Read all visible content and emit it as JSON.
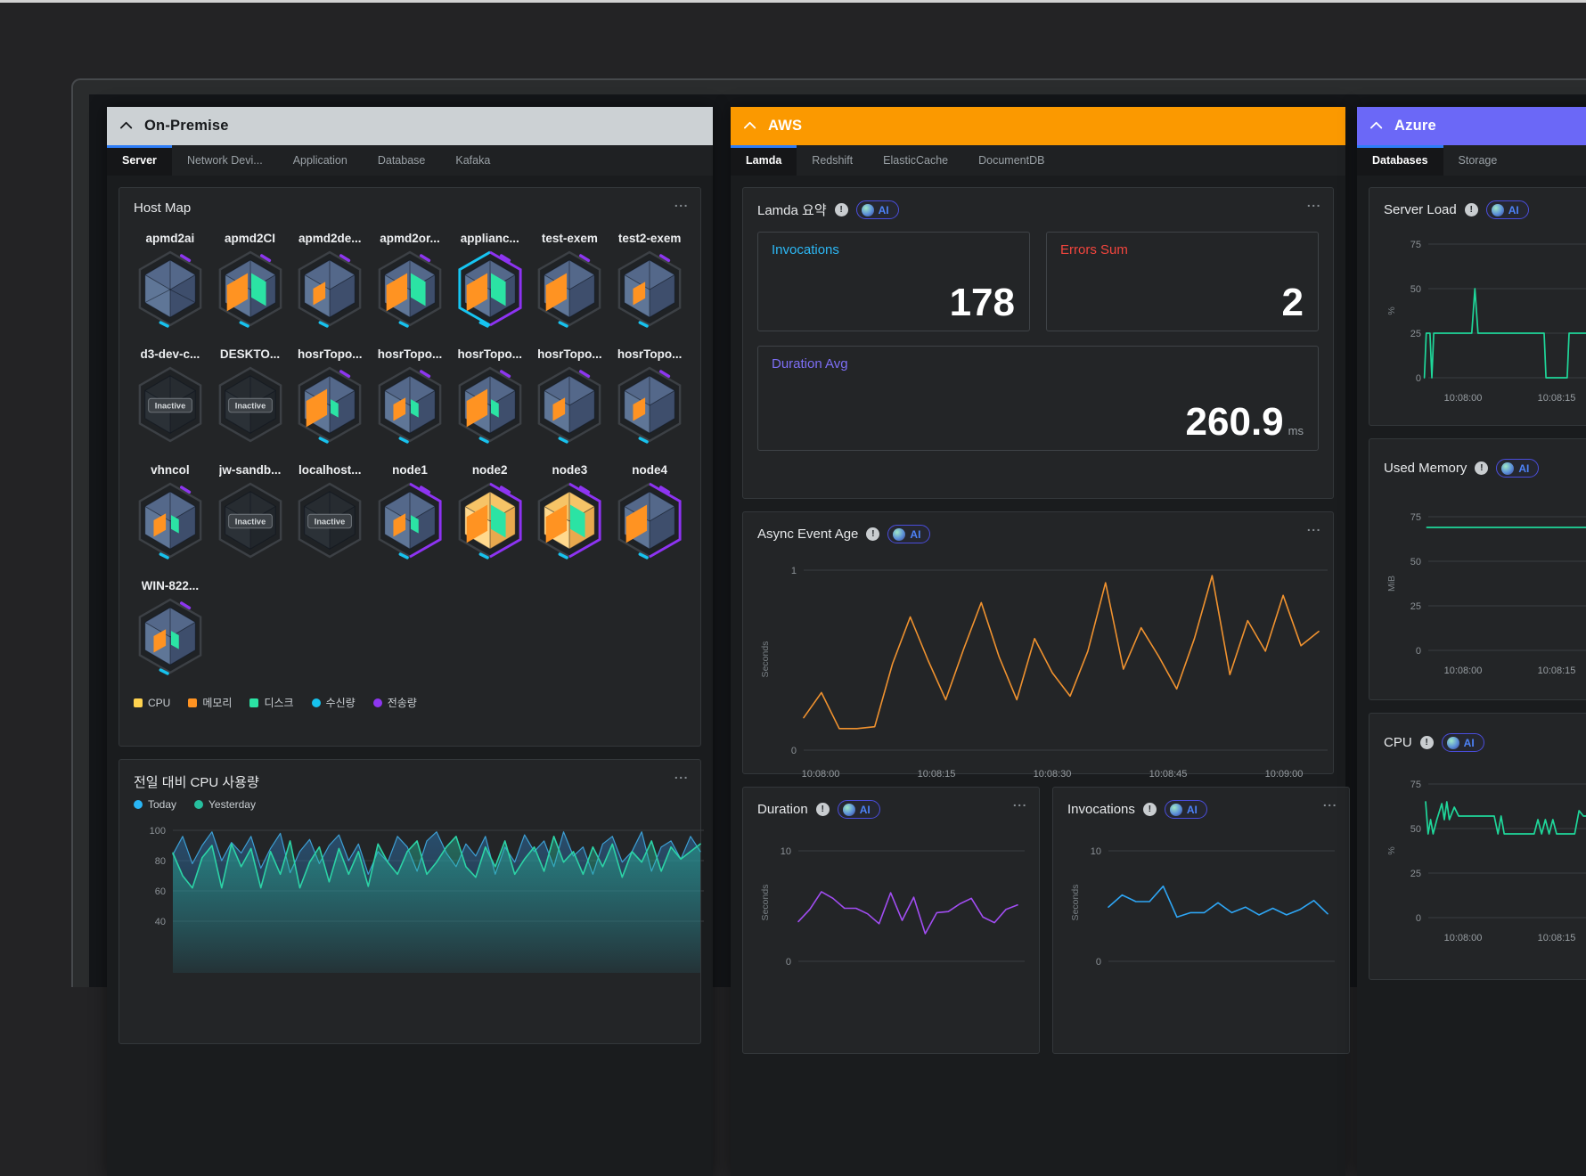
{
  "icons": {
    "menu_dots": "...",
    "info_glyph": "!"
  },
  "ai_badge": {
    "label": "AI"
  },
  "inactive_label": "Inactive",
  "panels": {
    "onprem": {
      "title": "On-Premise",
      "tabs": [
        "Server",
        "Network Devi...",
        "Application",
        "Database",
        "Kafaka"
      ],
      "active_tab_index": 0,
      "hostmap": {
        "title": "Host Map",
        "hosts": [
          {
            "name": "apmd2ai",
            "orange": 0,
            "green": 0,
            "spokes": true
          },
          {
            "name": "apmd2CI",
            "orange": 2,
            "green": 2
          },
          {
            "name": "apmd2de...",
            "orange": 1,
            "green": 0
          },
          {
            "name": "apmd2or...",
            "orange": 2,
            "green": 2
          },
          {
            "name": "applianc...",
            "orange": 2,
            "green": 2,
            "outline": "select"
          },
          {
            "name": "test-exem",
            "orange": 2,
            "green": 0
          },
          {
            "name": "test2-exem",
            "orange": 1,
            "green": 0
          },
          {
            "name": "d3-dev-c...",
            "inactive": true
          },
          {
            "name": "DESKTO...",
            "inactive": true
          },
          {
            "name": "hosrTopo...",
            "orange": 2,
            "green": 1
          },
          {
            "name": "hosrTopo...",
            "orange": 1,
            "green": 1
          },
          {
            "name": "hosrTopo...",
            "orange": 2,
            "green": 1
          },
          {
            "name": "hosrTopo...",
            "orange": 1,
            "green": 0
          },
          {
            "name": "hosrTopo...",
            "orange": 1,
            "green": 0
          },
          {
            "name": "vhncol",
            "orange": 1,
            "green": 1
          },
          {
            "name": "jw-sandb...",
            "inactive": true
          },
          {
            "name": "localhost...",
            "inactive": true
          },
          {
            "name": "node1",
            "orange": 1,
            "green": 1,
            "outline": "purple"
          },
          {
            "name": "node2",
            "body": "yellow",
            "orange": 2,
            "green": 2,
            "outline": "purple"
          },
          {
            "name": "node3",
            "body": "yellow",
            "orange": 2,
            "green": 2,
            "outline": "purple"
          },
          {
            "name": "node4",
            "orange": 2,
            "green": 0,
            "outline": "purple"
          },
          {
            "name": "WIN-822...",
            "orange": 1,
            "green": 1
          }
        ],
        "legend": [
          {
            "label": "CPU",
            "color": "#ffd34f",
            "shape": "square"
          },
          {
            "label": "메모리",
            "color": "#ff9322",
            "shape": "square"
          },
          {
            "label": "디스크",
            "color": "#2be3a4",
            "shape": "square"
          },
          {
            "label": "수신량",
            "color": "#17c2ee",
            "shape": "circle"
          },
          {
            "label": "전송량",
            "color": "#8d36f0",
            "shape": "circle"
          }
        ]
      },
      "cpu_card": {
        "title": "전일 대비 CPU 사용량",
        "legend": [
          {
            "label": "Today",
            "color": "#29b6f6",
            "shape": "circle"
          },
          {
            "label": "Yesterday",
            "color": "#26bf9e",
            "shape": "circle"
          }
        ]
      }
    },
    "aws": {
      "title": "AWS",
      "tabs": [
        "Lamda",
        "Redshift",
        "ElasticCache",
        "DocumentDB"
      ],
      "active_tab_index": 0,
      "summary": {
        "title": "Lamda 요약",
        "stats": [
          {
            "label": "Invocations",
            "value": "178",
            "color": "#2cb8f5"
          },
          {
            "label": "Errors Sum",
            "value": "2",
            "color": "#f2453d"
          },
          {
            "label": "Duration Avg",
            "value": "260.9",
            "unit": "ms",
            "color": "#7d6ef5"
          }
        ]
      },
      "async_card": {
        "title": "Async Event Age"
      },
      "duration_card": {
        "title": "Duration"
      },
      "invocations_card": {
        "title": "Invocations"
      }
    },
    "azure": {
      "title": "Azure",
      "tabs": [
        "Databases",
        "Storage"
      ],
      "active_tab_index": 0,
      "cards": [
        {
          "title": "Server Load"
        },
        {
          "title": "Used Memory"
        },
        {
          "title": "CPU"
        }
      ]
    }
  },
  "chart_data": [
    {
      "id": "onprem-cpu-compare",
      "type": "area",
      "title": "전일 대비 CPU 사용량",
      "yticks": [
        100,
        80,
        60,
        40
      ],
      "ylim": [
        40,
        105
      ],
      "legend_position": "top-left",
      "series": [
        {
          "name": "Today",
          "color": "#3d9fd4",
          "values": [
            84,
            96,
            78,
            90,
            99,
            80,
            92,
            85,
            96,
            75,
            88,
            98,
            72,
            86,
            94,
            78,
            90,
            97,
            80,
            91,
            71,
            86,
            79,
            96,
            89,
            73,
            93,
            99,
            85,
            76,
            91,
            83,
            96,
            71,
            89,
            79,
            97,
            86,
            93,
            76,
            99,
            83,
            89,
            71,
            91,
            96,
            79,
            86,
            99,
            73,
            89,
            93,
            81,
            96,
            86
          ]
        },
        {
          "name": "Yesterday",
          "color": "#2cd3a6",
          "values": [
            85,
            70,
            62,
            82,
            90,
            62,
            91,
            76,
            88,
            62,
            86,
            71,
            93,
            62,
            79,
            89,
            66,
            88,
            71,
            86,
            63,
            91,
            79,
            71,
            86,
            93,
            71,
            79,
            89,
            96,
            76,
            69,
            89,
            76,
            93,
            71,
            81,
            89,
            73,
            96,
            79,
            86,
            71,
            89,
            76,
            91,
            69,
            86,
            79,
            93,
            73,
            89,
            81,
            86,
            91
          ]
        }
      ]
    },
    {
      "id": "aws-async-event-age",
      "type": "line",
      "title": "Async Event Age",
      "color": "#f0922f",
      "ylabel": "Seconds",
      "yticks": [
        1,
        0
      ],
      "ylim": [
        0,
        1
      ],
      "xticks": [
        "10:08:00",
        "10:08:15",
        "10:08:30",
        "10:08:45",
        "10:09:00"
      ],
      "values": [
        0.18,
        0.32,
        0.12,
        0.12,
        0.13,
        0.48,
        0.74,
        0.5,
        0.28,
        0.56,
        0.82,
        0.52,
        0.28,
        0.62,
        0.43,
        0.3,
        0.55,
        0.93,
        0.45,
        0.68,
        0.52,
        0.34,
        0.62,
        0.97,
        0.42,
        0.72,
        0.55,
        0.86,
        0.58,
        0.66
      ]
    },
    {
      "id": "aws-duration",
      "type": "line",
      "title": "Duration",
      "color": "#a14df2",
      "ylabel": "Seconds",
      "yticks": [
        10,
        0
      ],
      "ylim": [
        0,
        10
      ],
      "values": [
        3.6,
        4.7,
        6.3,
        5.7,
        4.8,
        4.8,
        4.3,
        3.4,
        6.2,
        3.7,
        5.8,
        2.5,
        4.4,
        4.5,
        5.2,
        5.7,
        4.0,
        3.5,
        4.7,
        5.1
      ]
    },
    {
      "id": "aws-invocations",
      "type": "line",
      "title": "Invocations",
      "color": "#2ea6f5",
      "ylabel": "Seconds",
      "yticks": [
        10,
        0
      ],
      "ylim": [
        0,
        10
      ],
      "values": [
        4.9,
        6.0,
        5.4,
        5.4,
        6.8,
        4.0,
        4.4,
        4.4,
        5.3,
        4.4,
        4.9,
        4.2,
        4.8,
        4.2,
        4.7,
        5.5,
        4.3
      ]
    },
    {
      "id": "azure-server-load",
      "type": "line",
      "title": "Server Load",
      "color": "#1fd79a",
      "ylabel": "%",
      "yticks": [
        75,
        50,
        25,
        0
      ],
      "ylim": [
        0,
        80
      ],
      "xticks": [
        "10:08:00",
        "10:08:15"
      ],
      "points": [
        [
          -6.2,
          0
        ],
        [
          -5.9,
          25
        ],
        [
          -5.3,
          25
        ],
        [
          -5.0,
          0
        ],
        [
          -4.7,
          25
        ],
        [
          1.4,
          25
        ],
        [
          1.9,
          50
        ],
        [
          2.4,
          25
        ],
        [
          13.0,
          25
        ],
        [
          13.3,
          0
        ],
        [
          16.7,
          0
        ],
        [
          17.0,
          25
        ],
        [
          40,
          25
        ]
      ]
    },
    {
      "id": "azure-used-memory",
      "type": "line",
      "title": "Used Memory",
      "color": "#1fd79a",
      "ylabel": "MiB",
      "yticks": [
        75,
        50,
        25,
        0
      ],
      "ylim": [
        0,
        80
      ],
      "xticks": [
        "10:08:00",
        "10:08:15"
      ],
      "points": [
        [
          -5.8,
          69
        ],
        [
          40,
          69
        ]
      ]
    },
    {
      "id": "azure-cpu",
      "type": "line",
      "title": "CPU",
      "color": "#1fd79a",
      "ylabel": "%",
      "yticks": [
        75,
        50,
        25,
        0
      ],
      "ylim": [
        0,
        80
      ],
      "xticks": [
        "10:08:00",
        "10:08:15"
      ],
      "points": [
        [
          -6,
          65
        ],
        [
          -5.6,
          47
        ],
        [
          -5.2,
          55
        ],
        [
          -4.8,
          47
        ],
        [
          -4.2,
          55
        ],
        [
          -3.4,
          64
        ],
        [
          -3,
          55
        ],
        [
          -2.6,
          65
        ],
        [
          -2.2,
          55
        ],
        [
          -1.4,
          62
        ],
        [
          -0.7,
          57
        ],
        [
          5,
          57
        ],
        [
          5.6,
          47
        ],
        [
          6.1,
          57
        ],
        [
          6.6,
          47
        ],
        [
          11.4,
          47
        ],
        [
          12,
          55
        ],
        [
          12.6,
          47
        ],
        [
          13.2,
          55
        ],
        [
          13.8,
          47
        ],
        [
          14.4,
          55
        ],
        [
          15,
          47
        ],
        [
          17.9,
          47
        ],
        [
          18.6,
          60
        ],
        [
          19.3,
          57
        ],
        [
          24,
          57
        ],
        [
          40,
          57
        ]
      ]
    }
  ]
}
